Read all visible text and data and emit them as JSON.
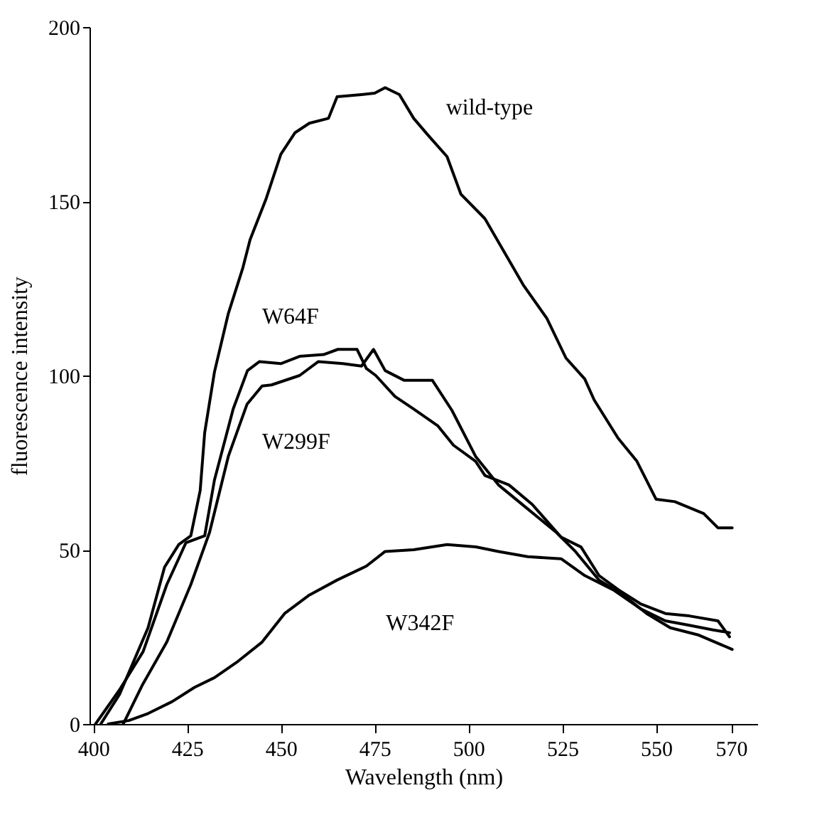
{
  "chart_data": {
    "type": "line",
    "xlabel": "Wavelength (nm)",
    "ylabel": "fluorescence intensity",
    "xlim": [
      399,
      577
    ],
    "ylim": [
      0,
      200
    ],
    "xticks": [
      400,
      425,
      450,
      475,
      500,
      525,
      550,
      570
    ],
    "yticks": [
      0,
      50,
      100,
      150,
      200
    ],
    "grid": false,
    "legend": false,
    "marker": "none",
    "line_style": "solid",
    "series": [
      {
        "name": "wild-type",
        "color": "#000000",
        "x": [
          402,
          407,
          414.6,
          419,
          422.8,
          426,
          428.5,
          429.7,
          432.3,
          436,
          439.9,
          441.8,
          446,
          450,
          453.8,
          457.6,
          462.7,
          465,
          471.5,
          475,
          477.8,
          481.6,
          485.4,
          489.2,
          494.3,
          498,
          504.4,
          509.5,
          514.6,
          520.9,
          526,
          531,
          533.5,
          539.9,
          544.9,
          550,
          555,
          562.7,
          566.5,
          570.3
        ],
        "values": [
          0,
          8.5,
          27.6,
          45,
          51.5,
          54,
          67,
          83.6,
          101,
          117.8,
          131,
          139,
          150.5,
          163.5,
          169.7,
          172.4,
          173.8,
          180,
          180.6,
          181,
          182.6,
          180.6,
          173.8,
          169,
          162.8,
          152,
          145,
          135.5,
          126,
          116.4,
          105,
          99,
          93,
          82,
          75.4,
          64.5,
          63.8,
          60.4,
          56.3,
          56.3
        ]
      },
      {
        "name": "W64F",
        "color": "#000000",
        "x": [
          400.6,
          407,
          413.3,
          419.6,
          424.7,
          429.7,
          432.3,
          437.3,
          441.1,
          444.3,
          450,
          455,
          461.4,
          465.2,
          470.3,
          472.8,
          475.3,
          480.4,
          485.4,
          491.8,
          496,
          501.9,
          504.4,
          510.8,
          517,
          524.7,
          530,
          534.8,
          540,
          546,
          552.5,
          558.9,
          566.5,
          569.6
        ],
        "values": [
          0,
          9.8,
          20.8,
          40,
          52,
          54,
          70,
          90.4,
          101.4,
          104,
          103.4,
          105.5,
          106,
          107.5,
          107.5,
          102,
          100,
          94,
          90.4,
          85.6,
          80,
          75.4,
          71.3,
          68.6,
          63,
          53.6,
          50.8,
          42.6,
          38.5,
          34.4,
          31.7,
          31,
          29.6,
          25
        ]
      },
      {
        "name": "W299F",
        "color": "#000000",
        "x": [
          408,
          413,
          419.6,
          426,
          431,
          436,
          441,
          445,
          447.5,
          455,
          460,
          466.5,
          471.5,
          474.7,
          477.8,
          482.9,
          490.4,
          495.6,
          501.9,
          508,
          515.8,
          523.4,
          528.5,
          534.8,
          541,
          547.5,
          553.8,
          561.4,
          570.3
        ],
        "values": [
          0,
          11,
          23.5,
          40,
          55,
          76.8,
          91.8,
          97,
          97.3,
          100,
          104,
          103.4,
          102.7,
          107.5,
          101.4,
          98.6,
          98.6,
          90,
          76.8,
          68.6,
          61.7,
          55,
          49.5,
          41.3,
          37.2,
          31.7,
          27.6,
          25.5,
          21.4
        ]
      },
      {
        "name": "W342F",
        "color": "#000000",
        "x": [
          404,
          409.5,
          414.6,
          421,
          427,
          432.3,
          438.6,
          445,
          451,
          457.6,
          465,
          472.8,
          477.8,
          485.4,
          494.3,
          502,
          508,
          515.8,
          524.7,
          531,
          538.6,
          546,
          552.5,
          558.9,
          565.2,
          569.6
        ],
        "values": [
          0,
          1,
          3,
          6.4,
          10.5,
          13.3,
          18,
          23.5,
          31.7,
          37,
          41.3,
          45.3,
          49.5,
          50,
          51.5,
          50.8,
          49.5,
          48,
          47.4,
          42.6,
          38.5,
          33,
          29.6,
          28.3,
          27,
          26.2
        ]
      }
    ]
  }
}
